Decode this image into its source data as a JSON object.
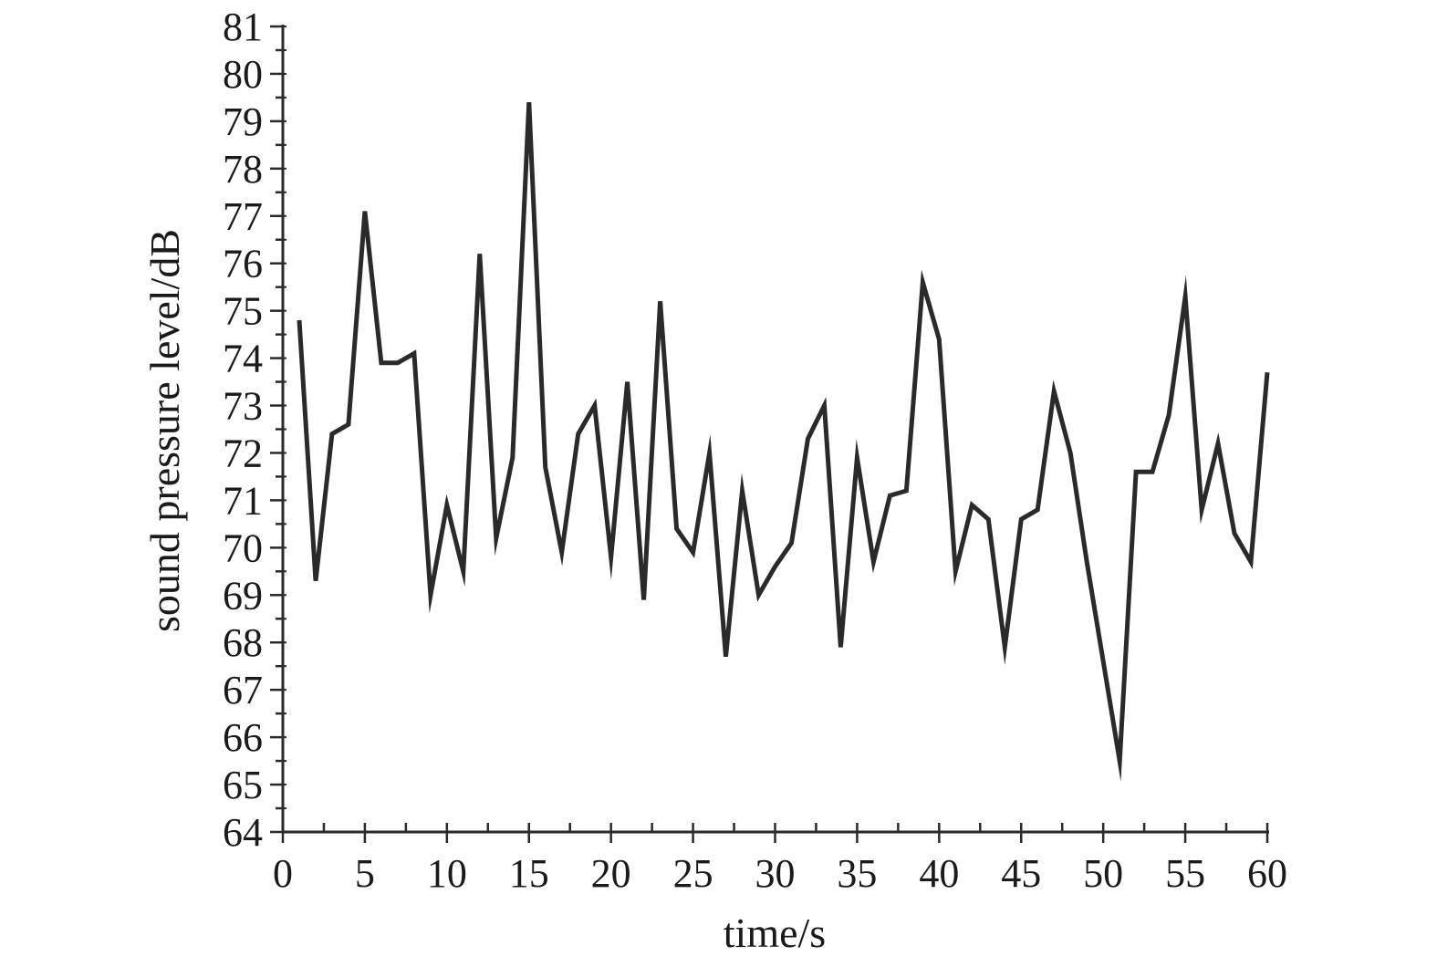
{
  "chart_data": {
    "type": "line",
    "title": "",
    "xlabel": "time/s",
    "ylabel": "sound pressure level/dB",
    "xlim": [
      0,
      60
    ],
    "ylim": [
      64,
      81
    ],
    "x_ticks": [
      "0",
      "5",
      "10",
      "15",
      "20",
      "25",
      "30",
      "35",
      "40",
      "45",
      "50",
      "55",
      "60"
    ],
    "y_ticks": [
      "64",
      "65",
      "66",
      "67",
      "68",
      "69",
      "70",
      "71",
      "72",
      "73",
      "74",
      "75",
      "76",
      "77",
      "78",
      "79",
      "80",
      "81"
    ],
    "grid": false,
    "line_color": "#2a2a2a",
    "series": [
      {
        "x": [
          1,
          2,
          3,
          4,
          5,
          6,
          7,
          8,
          9,
          10,
          11,
          12,
          13,
          14,
          15,
          16,
          17,
          18,
          19,
          20,
          21,
          22,
          23,
          24,
          25,
          26,
          27,
          28,
          29,
          30,
          31,
          32,
          33,
          34,
          35,
          36,
          37,
          38,
          39,
          40,
          41,
          42,
          43,
          44,
          45,
          46,
          47,
          48,
          49,
          50,
          51,
          52,
          53,
          54,
          55,
          56,
          57,
          58,
          59,
          60
        ],
        "values": [
          74.8,
          69.3,
          72.4,
          72.6,
          77.1,
          73.9,
          73.9,
          74.1,
          69.0,
          70.9,
          69.5,
          76.2,
          70.2,
          71.9,
          79.4,
          71.7,
          69.9,
          72.4,
          73.0,
          69.8,
          73.5,
          68.9,
          75.2,
          70.4,
          69.9,
          72.0,
          67.7,
          71.2,
          69.0,
          69.6,
          70.1,
          72.3,
          73.0,
          67.9,
          71.9,
          69.7,
          71.1,
          71.2,
          75.6,
          74.4,
          69.5,
          70.9,
          70.6,
          67.9,
          70.6,
          70.8,
          73.3,
          72.0,
          69.7,
          67.6,
          65.5,
          71.6,
          71.6,
          72.8,
          75.3,
          70.8,
          72.2,
          70.3,
          69.7,
          73.7
        ]
      }
    ]
  }
}
